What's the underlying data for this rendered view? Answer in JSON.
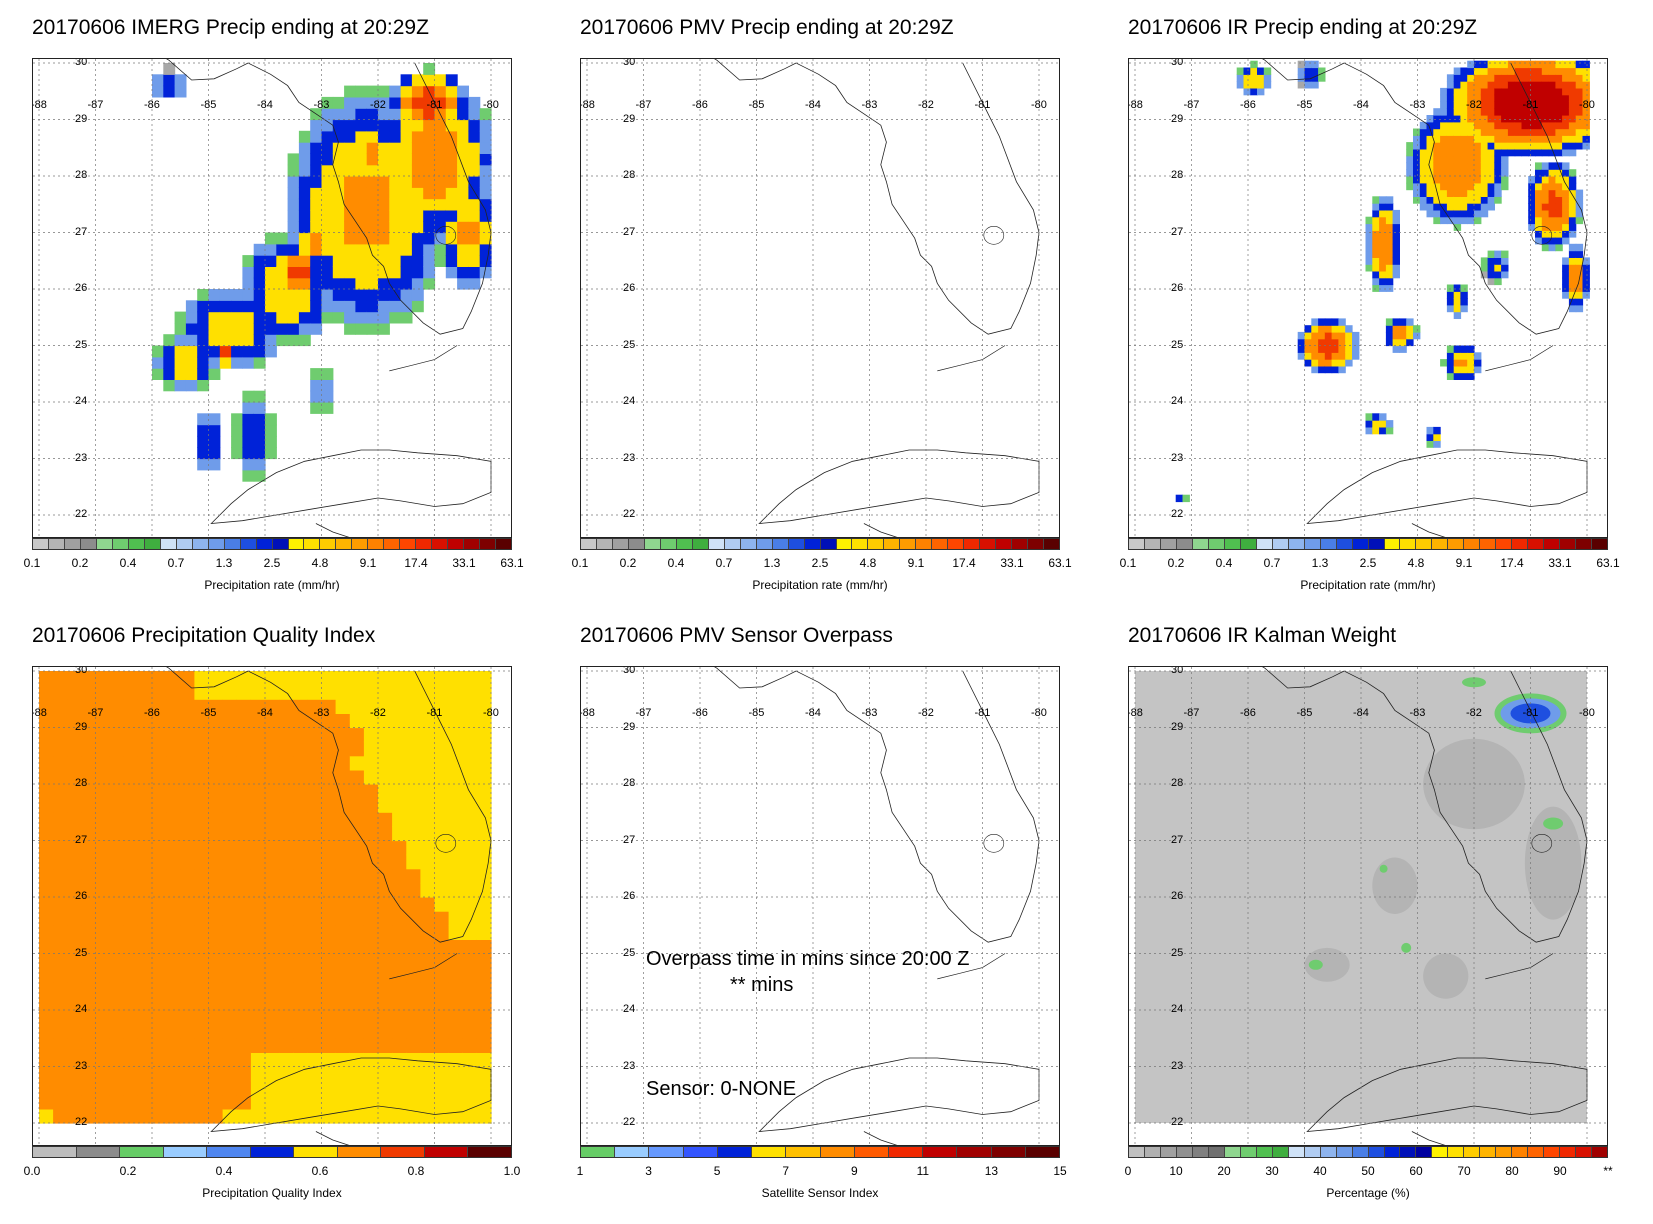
{
  "panels": [
    {
      "title": "20170606 IMERG Precip ending at 20:29Z",
      "colorbar_title": "Precipitation rate (mm/hr)"
    },
    {
      "title": "20170606 PMV Precip ending at 20:29Z",
      "colorbar_title": "Precipitation rate (mm/hr)"
    },
    {
      "title": "20170606 IR Precip ending at 20:29Z",
      "colorbar_title": "Precipitation rate (mm/hr)"
    },
    {
      "title": "20170606 Precipitation Quality Index",
      "colorbar_title": "Precipitation Quality Index"
    },
    {
      "title": "20170606 PMV Sensor Overpass",
      "colorbar_title": "Satellite Sensor Index"
    },
    {
      "title": "20170606 IR Kalman Weight",
      "colorbar_title": "Percentage (%)"
    }
  ],
  "axes": {
    "lat_labels": [
      "30",
      "29",
      "28",
      "27",
      "26",
      "25",
      "24",
      "23",
      "22"
    ],
    "lon_labels": [
      "-88",
      "-87",
      "-86",
      "-85",
      "-84",
      "-83",
      "-82",
      "-81",
      "-80"
    ]
  },
  "colorbars": {
    "precip": {
      "ticks": [
        "0.1",
        "0.2",
        "0.4",
        "0.7",
        "1.3",
        "2.5",
        "4.8",
        "9.1",
        "17.4",
        "33.1",
        "63.1"
      ],
      "colors": [
        "#c8c8c8",
        "#b4b4b4",
        "#a0a0a0",
        "#8c8c8c",
        "#8fd68f",
        "#6fcc6f",
        "#50c050",
        "#3fae3f",
        "#cfe2f7",
        "#b0ccf2",
        "#8eb4ee",
        "#6f9cea",
        "#4a7ee6",
        "#1e4fe0",
        "#0022d8",
        "#0010b8",
        "#fff200",
        "#ffe000",
        "#ffcc00",
        "#ffb400",
        "#ff9c00",
        "#ff8200",
        "#ff6400",
        "#ff4600",
        "#f02800",
        "#d81000",
        "#c00000",
        "#a00000",
        "#7e0000",
        "#5a0000"
      ]
    },
    "quality": {
      "ticks": [
        "0.0",
        "0.2",
        "0.4",
        "0.6",
        "0.8",
        "1.0"
      ],
      "colors": [
        "#bdbdbd",
        "#8c8c8c",
        "#66cc66",
        "#99ccff",
        "#4f86f0",
        "#0022d8",
        "#ffe000",
        "#ff8c00",
        "#f03a00",
        "#c00000",
        "#5a0000"
      ]
    },
    "sensor": {
      "ticks": [
        "1",
        "3",
        "5",
        "7",
        "9",
        "11",
        "13",
        "15"
      ],
      "colors": [
        "#66cc66",
        "#99ccff",
        "#6699ff",
        "#3355ff",
        "#0022d8",
        "#ffe000",
        "#ffc000",
        "#ff8c00",
        "#ff5a00",
        "#f02800",
        "#c00000",
        "#a00000",
        "#7e0000",
        "#5a0000"
      ]
    },
    "kalman": {
      "ticks": [
        "0",
        "10",
        "20",
        "30",
        "40",
        "50",
        "60",
        "70",
        "80",
        "90",
        "**"
      ],
      "colors": [
        "#c0c0c0",
        "#b0b0b0",
        "#a0a0a0",
        "#909090",
        "#808080",
        "#707070",
        "#8fd68f",
        "#6fcc6f",
        "#50c050",
        "#3fae3f",
        "#cfe2f7",
        "#b0ccf2",
        "#8eb4ee",
        "#6f9cea",
        "#4a7ee6",
        "#1e4fe0",
        "#0022d8",
        "#0010b8",
        "#0000a0",
        "#fff200",
        "#ffe000",
        "#ffcc00",
        "#ffb400",
        "#ff9c00",
        "#ff8200",
        "#ff6400",
        "#ff4600",
        "#f02800",
        "#d81000",
        "#a00000"
      ]
    }
  },
  "overpass": {
    "line1": "Overpass time in mins since 20:00 Z",
    "line2": "** mins",
    "sensor_line": "Sensor:   0-NONE"
  }
}
